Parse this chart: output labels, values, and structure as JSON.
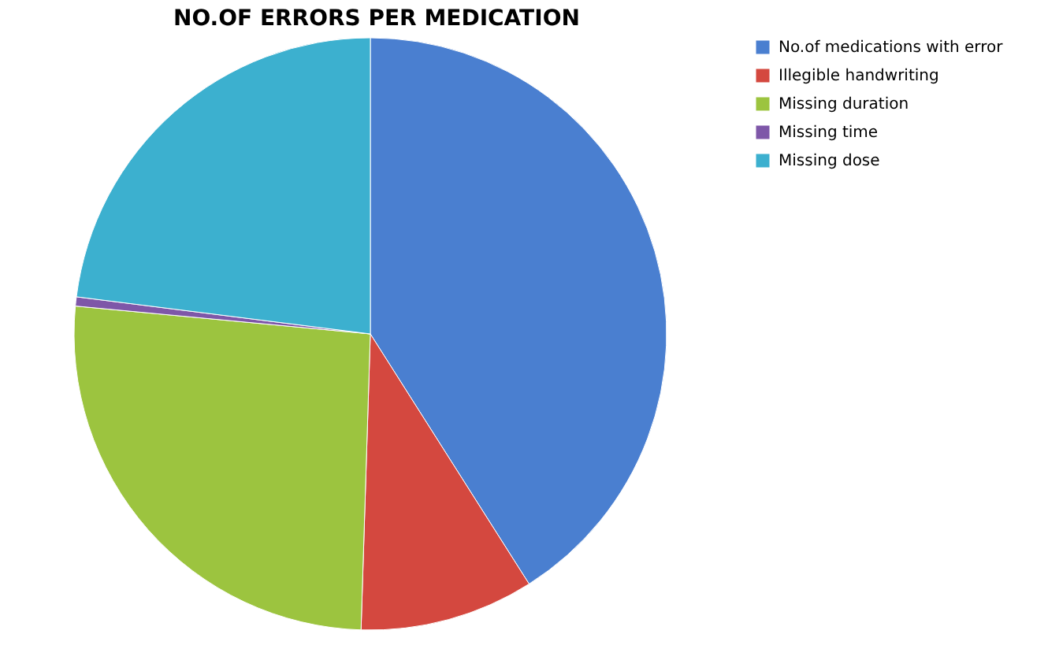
{
  "chart_data": {
    "type": "pie",
    "title": "NO.OF ERRORS PER MEDICATION",
    "categories": [
      "No.of medications with error",
      "Illegible handwriting",
      "Missing duration",
      "Missing time",
      "Missing dose"
    ],
    "values": [
      41,
      9.5,
      26,
      0.5,
      23
    ],
    "colors": [
      "#4a7fd0",
      "#d4483f",
      "#9cc43f",
      "#7e57a8",
      "#3cb0cf"
    ],
    "legend": "right"
  }
}
